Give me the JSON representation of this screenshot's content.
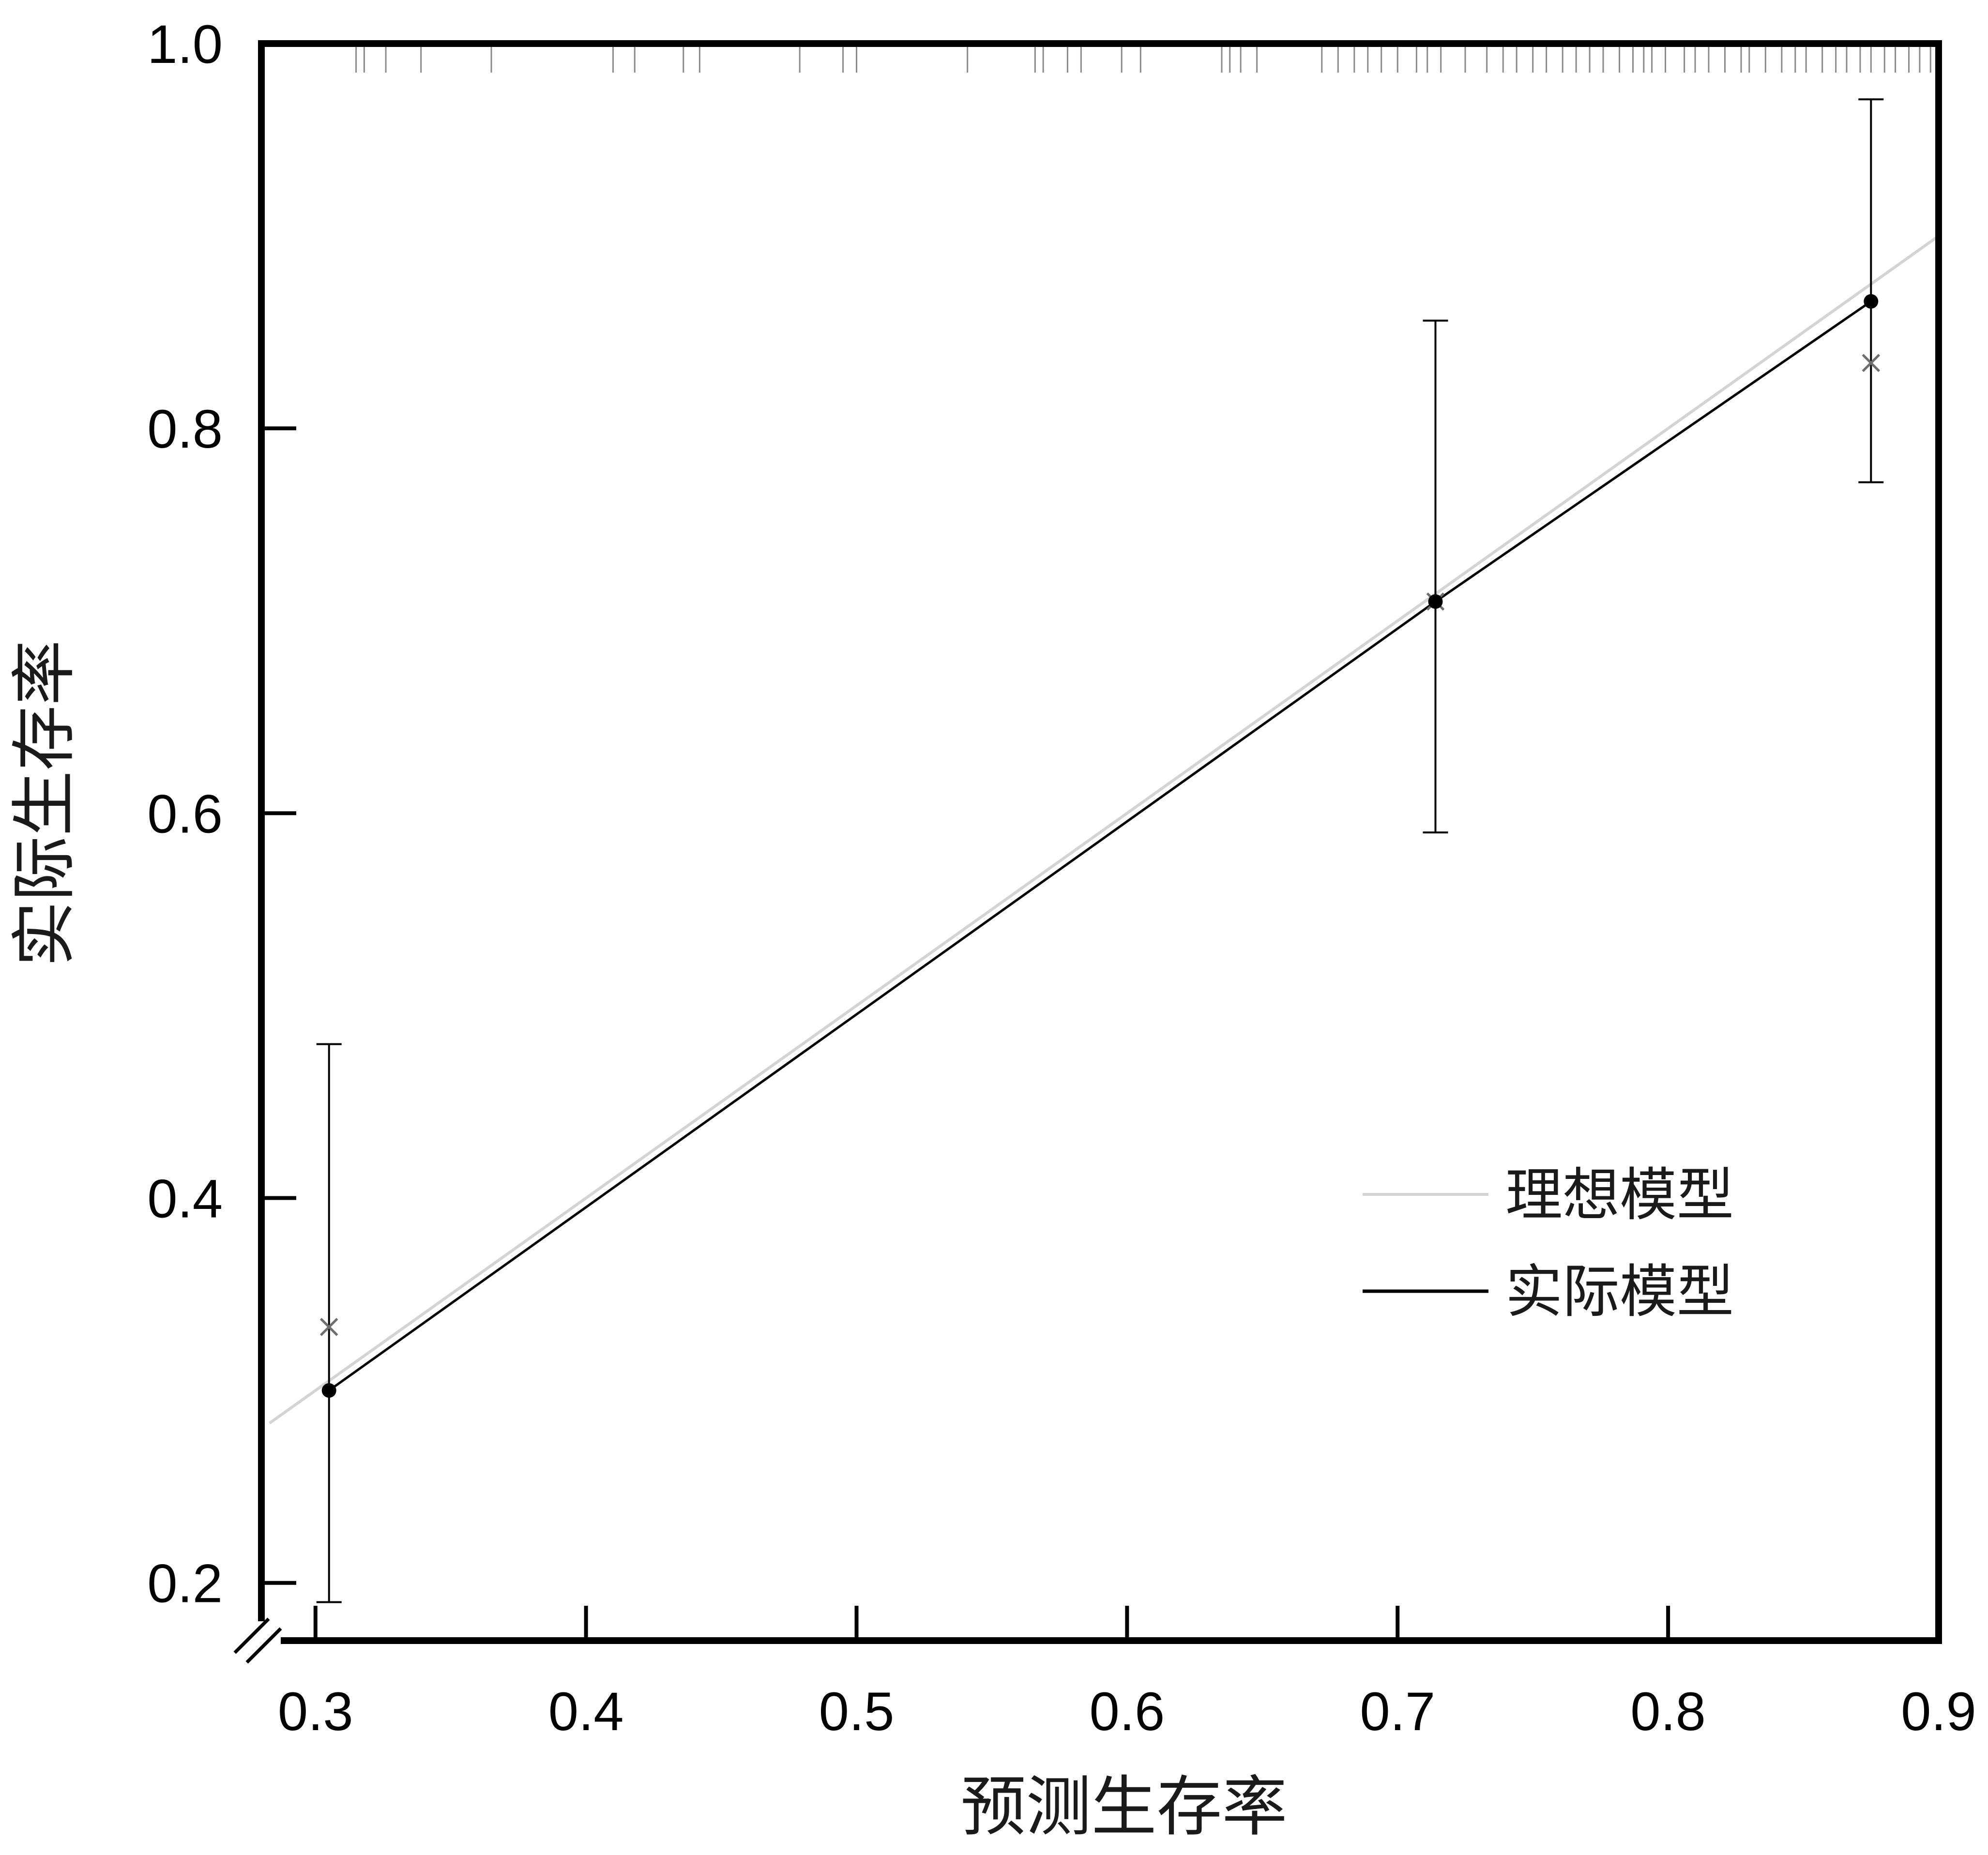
{
  "chart_data": {
    "type": "scatter",
    "title": "",
    "xlabel": "预测生存率",
    "ylabel": "实际生存率",
    "xlim": [
      0.28,
      0.9
    ],
    "ylim": [
      0.17,
      1.0
    ],
    "x_ticks": [
      {
        "value": 0.3,
        "label": "0.3"
      },
      {
        "value": 0.4,
        "label": "0.4"
      },
      {
        "value": 0.5,
        "label": "0.5"
      },
      {
        "value": 0.6,
        "label": "0.6"
      },
      {
        "value": 0.7,
        "label": "0.7"
      },
      {
        "value": 0.8,
        "label": "0.8"
      },
      {
        "value": 0.9,
        "label": "0.9"
      }
    ],
    "y_ticks": [
      {
        "value": 0.2,
        "label": "0.2"
      },
      {
        "value": 0.4,
        "label": "0.4"
      },
      {
        "value": 0.6,
        "label": "0.6"
      },
      {
        "value": 0.8,
        "label": "0.8"
      },
      {
        "value": 1.0,
        "label": "1.0"
      }
    ],
    "grid": false,
    "axis_break": true,
    "legend": {
      "position": "lower-right",
      "entries": [
        {
          "label": "理想模型",
          "color": "#d4d4d4"
        },
        {
          "label": "实际模型",
          "color": "#000000"
        }
      ]
    },
    "series": [
      {
        "name": "理想模型",
        "kind": "line",
        "color": "#d4d4d4",
        "x": [
          0.283,
          0.9
        ],
        "y": [
          0.283,
          0.9
        ]
      },
      {
        "name": "实际模型",
        "kind": "line_points_errorbars",
        "color": "#000000",
        "points": [
          {
            "x": 0.305,
            "y": 0.3,
            "lower": 0.19,
            "upper": 0.48
          },
          {
            "x": 0.714,
            "y": 0.71,
            "lower": 0.59,
            "upper": 0.856
          },
          {
            "x": 0.875,
            "y": 0.866,
            "lower": 0.772,
            "upper": 0.971
          }
        ]
      },
      {
        "kind": "cross_markers",
        "color": "#6e6e6e",
        "x": [
          0.305,
          0.714,
          0.875
        ],
        "y": [
          0.333,
          0.71,
          0.834
        ]
      }
    ],
    "rug_x": [
      0.315,
      0.318,
      0.326,
      0.339,
      0.365,
      0.41,
      0.418,
      0.436,
      0.442,
      0.479,
      0.495,
      0.5,
      0.541,
      0.566,
      0.569,
      0.578,
      0.583,
      0.598,
      0.605,
      0.635,
      0.638,
      0.642,
      0.648,
      0.672,
      0.678,
      0.684,
      0.689,
      0.694,
      0.7,
      0.707,
      0.711,
      0.716,
      0.725,
      0.733,
      0.739,
      0.744,
      0.75,
      0.755,
      0.761,
      0.766,
      0.771,
      0.776,
      0.782,
      0.787,
      0.791,
      0.794,
      0.799,
      0.806,
      0.81,
      0.815,
      0.821,
      0.827,
      0.83,
      0.836,
      0.842,
      0.847,
      0.851,
      0.857,
      0.862,
      0.866,
      0.871,
      0.875,
      0.88,
      0.884,
      0.889,
      0.893,
      0.897
    ]
  }
}
